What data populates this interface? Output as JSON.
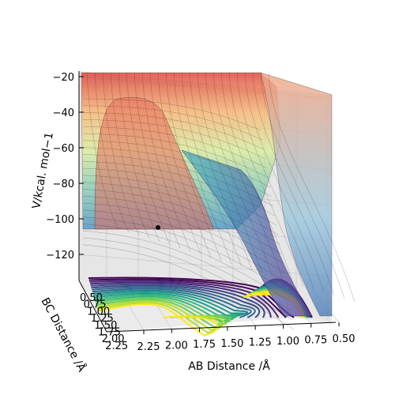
{
  "chart_data": {
    "type": "surface3d",
    "xlabel": "AB Distance /Å",
    "ylabel": "BC Distance /Å",
    "zlabel": "V/kcal. mol−1",
    "x_ticks": [
      "2.25",
      "2.00",
      "1.75",
      "1.50",
      "1.25",
      "1.00",
      "0.75",
      "0.50"
    ],
    "y_ticks": [
      "0.50",
      "0.75",
      "1.00",
      "1.25",
      "1.50",
      "1.75",
      "2.00",
      "2.25"
    ],
    "z_ticks": [
      "−20",
      "−40",
      "−60",
      "−80",
      "−100",
      "−120"
    ],
    "xlim": [
      0.5,
      2.25
    ],
    "ylim": [
      0.5,
      2.25
    ],
    "zlim": [
      -130,
      -20
    ],
    "colormap_surface": "jet",
    "colormap_contour": "viridis",
    "surface_alpha": 0.45,
    "grid": true,
    "marker": {
      "x": 2.0,
      "y": 2.0,
      "z": -106,
      "color": "#000000"
    }
  }
}
